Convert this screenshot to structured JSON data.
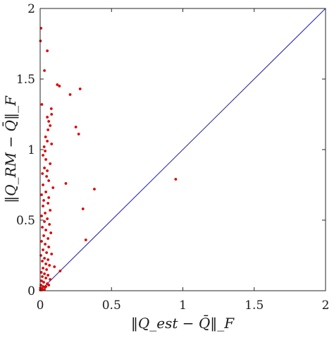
{
  "chart_data": {
    "type": "scatter",
    "title": "",
    "xlabel": "‖Q_est − Q̄‖_F",
    "ylabel": "‖Q_RM − Q̄‖_F",
    "xlim": [
      0,
      2
    ],
    "ylim": [
      0,
      2
    ],
    "x_ticks": [
      {
        "value": 0,
        "label": "0"
      },
      {
        "value": 0.5,
        "label": "0.5"
      },
      {
        "value": 1,
        "label": "1"
      },
      {
        "value": 1.5,
        "label": "1.5"
      },
      {
        "value": 2,
        "label": "2"
      }
    ],
    "y_ticks": [
      {
        "value": 0,
        "label": "0"
      },
      {
        "value": 0.5,
        "label": "0.5"
      },
      {
        "value": 1,
        "label": "1"
      },
      {
        "value": 1.5,
        "label": "1.5"
      },
      {
        "value": 2,
        "label": "2"
      }
    ],
    "grid": false,
    "legend": "none",
    "reference_line": {
      "from": [
        0,
        0
      ],
      "to": [
        2,
        2
      ],
      "color": "#1f1fa8"
    },
    "marker_color": "#e00000",
    "points": [
      [
        0.006,
        1.86
      ],
      [
        0.002,
        1.77
      ],
      [
        0.05,
        1.7
      ],
      [
        0.03,
        1.56
      ],
      [
        0.12,
        1.46
      ],
      [
        0.135,
        1.45
      ],
      [
        0.28,
        1.43
      ],
      [
        0.21,
        1.39
      ],
      [
        0.012,
        1.32
      ],
      [
        0.078,
        1.29
      ],
      [
        0.08,
        1.25
      ],
      [
        0.05,
        1.23
      ],
      [
        0.06,
        1.2
      ],
      [
        0.07,
        1.17
      ],
      [
        0.25,
        1.16
      ],
      [
        0.055,
        1.14
      ],
      [
        0.27,
        1.11
      ],
      [
        0.038,
        1.09
      ],
      [
        0.05,
        1.06
      ],
      [
        0.08,
        1.04
      ],
      [
        0.028,
        1.02
      ],
      [
        0.035,
        0.99
      ],
      [
        0.02,
        0.96
      ],
      [
        0.04,
        0.93
      ],
      [
        0.07,
        0.9
      ],
      [
        0.03,
        0.87
      ],
      [
        0.05,
        0.85
      ],
      [
        0.016,
        0.83
      ],
      [
        0.045,
        0.81
      ],
      [
        0.18,
        0.76
      ],
      [
        0.38,
        0.72
      ],
      [
        0.95,
        0.79
      ],
      [
        0.06,
        0.78
      ],
      [
        0.02,
        0.75
      ],
      [
        0.09,
        0.73
      ],
      [
        0.04,
        0.7
      ],
      [
        0.01,
        0.68
      ],
      [
        0.06,
        0.66
      ],
      [
        0.025,
        0.64
      ],
      [
        0.055,
        0.62
      ],
      [
        0.3,
        0.58
      ],
      [
        0.02,
        0.6
      ],
      [
        0.07,
        0.57
      ],
      [
        0.035,
        0.55
      ],
      [
        0.01,
        0.53
      ],
      [
        0.05,
        0.51
      ],
      [
        0.03,
        0.49
      ],
      [
        0.065,
        0.47
      ],
      [
        0.015,
        0.45
      ],
      [
        0.04,
        0.43
      ],
      [
        0.075,
        0.41
      ],
      [
        0.025,
        0.39
      ],
      [
        0.055,
        0.37
      ],
      [
        0.32,
        0.36
      ],
      [
        0.01,
        0.35
      ],
      [
        0.035,
        0.33
      ],
      [
        0.06,
        0.31
      ],
      [
        0.02,
        0.29
      ],
      [
        0.045,
        0.27
      ],
      [
        0.08,
        0.26
      ],
      [
        0.005,
        0.25
      ],
      [
        0.03,
        0.23
      ],
      [
        0.055,
        0.22
      ],
      [
        0.015,
        0.21
      ],
      [
        0.04,
        0.19
      ],
      [
        0.065,
        0.18
      ],
      [
        0.1,
        0.17
      ],
      [
        0.02,
        0.16
      ],
      [
        0.045,
        0.15
      ],
      [
        0.14,
        0.14
      ],
      [
        0.008,
        0.13
      ],
      [
        0.03,
        0.12
      ],
      [
        0.055,
        0.11
      ],
      [
        0.015,
        0.1
      ],
      [
        0.04,
        0.09
      ],
      [
        0.07,
        0.08
      ],
      [
        0.01,
        0.07
      ],
      [
        0.025,
        0.06
      ],
      [
        0.05,
        0.05
      ],
      [
        0.005,
        0.04
      ],
      [
        0.02,
        0.03
      ],
      [
        0.035,
        0.025
      ],
      [
        0.008,
        0.015
      ],
      [
        0.015,
        0.01
      ],
      [
        0.03,
        0.008
      ],
      [
        0.04,
        0.03
      ],
      [
        0.06,
        0.04
      ],
      [
        0.012,
        0.005
      ],
      [
        0.002,
        0.02
      ],
      [
        0.001,
        0.005
      ]
    ]
  }
}
